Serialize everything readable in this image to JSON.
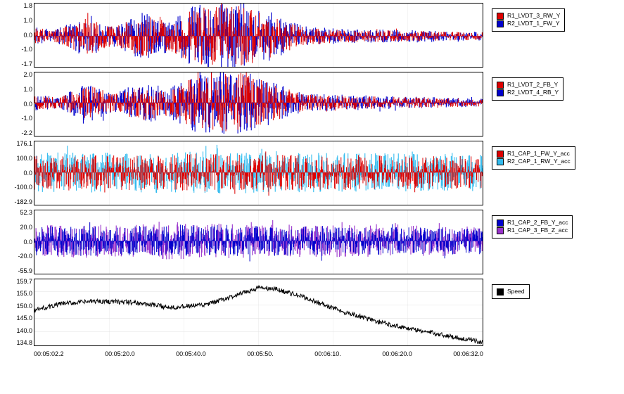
{
  "global": {
    "background_color": "#ffffff",
    "border_color": "#000000",
    "grid_color": "#e0e0e0",
    "tick_fontsize": 9,
    "legend_fontsize": 8.5
  },
  "xaxis": {
    "ticks": [
      "00:05:02.2",
      "00:05:20.0",
      "00:05:40.0",
      "00:05:50.",
      "00:06:10.",
      "00:06:20.0",
      "00:06:32.0"
    ]
  },
  "panels": [
    {
      "id": "p1",
      "height": 92,
      "yticks": [
        "1.8",
        "1.0",
        "0.0",
        "-1.0",
        "-1.7"
      ],
      "ylim": [
        -1.7,
        1.8
      ],
      "type": "dense-timeseries",
      "series": [
        {
          "name": "R1_LVDT_3_RW_Y",
          "color": "#dd0000"
        },
        {
          "name": "R2_LVDT_1_FW_Y",
          "color": "#0000cc"
        }
      ],
      "envelope": {
        "segments": [
          {
            "x": 0.0,
            "amp": 0.25
          },
          {
            "x": 0.05,
            "amp": 0.2
          },
          {
            "x": 0.12,
            "amp": 0.62
          },
          {
            "x": 0.18,
            "amp": 0.3
          },
          {
            "x": 0.24,
            "amp": 0.68
          },
          {
            "x": 0.3,
            "amp": 0.45
          },
          {
            "x": 0.36,
            "amp": 0.9
          },
          {
            "x": 0.46,
            "amp": 0.98
          },
          {
            "x": 0.54,
            "amp": 0.62
          },
          {
            "x": 0.6,
            "amp": 0.28
          },
          {
            "x": 0.7,
            "amp": 0.2
          },
          {
            "x": 0.8,
            "amp": 0.18
          },
          {
            "x": 0.9,
            "amp": 0.15
          },
          {
            "x": 1.0,
            "amp": 0.12
          }
        ]
      }
    },
    {
      "id": "p2",
      "height": 92,
      "yticks": [
        "2.0",
        "1.0",
        "0.0",
        "-1.0",
        "-2.2"
      ],
      "ylim": [
        -2.2,
        2.0
      ],
      "type": "dense-timeseries",
      "series": [
        {
          "name": "R1_LVDT_2_FB_Y",
          "color": "#dd0000"
        },
        {
          "name": "R2_LVDT_4_RB_Y",
          "color": "#0000cc"
        }
      ],
      "envelope": {
        "segments": [
          {
            "x": 0.0,
            "amp": 0.22
          },
          {
            "x": 0.05,
            "amp": 0.18
          },
          {
            "x": 0.12,
            "amp": 0.55
          },
          {
            "x": 0.18,
            "amp": 0.28
          },
          {
            "x": 0.24,
            "amp": 0.6
          },
          {
            "x": 0.3,
            "amp": 0.4
          },
          {
            "x": 0.36,
            "amp": 0.85
          },
          {
            "x": 0.46,
            "amp": 0.95
          },
          {
            "x": 0.54,
            "amp": 0.58
          },
          {
            "x": 0.6,
            "amp": 0.26
          },
          {
            "x": 0.7,
            "amp": 0.22
          },
          {
            "x": 0.8,
            "amp": 0.18
          },
          {
            "x": 0.9,
            "amp": 0.15
          },
          {
            "x": 1.0,
            "amp": 0.12
          }
        ]
      }
    },
    {
      "id": "p3",
      "height": 92,
      "yticks": [
        "176.1",
        "100.0",
        "0.0",
        "-100.0",
        "-182.9"
      ],
      "ylim": [
        -182.9,
        176.1
      ],
      "type": "dense-timeseries",
      "series": [
        {
          "name": "R1_CAP_1_FW_Y_acc",
          "color": "#dd0000"
        },
        {
          "name": "R2_CAP_1_RW_Y_acc",
          "color": "#33bbee"
        }
      ],
      "envelope": {
        "segments": [
          {
            "x": 0.0,
            "amp": 0.55
          },
          {
            "x": 0.1,
            "amp": 0.58
          },
          {
            "x": 0.2,
            "amp": 0.56
          },
          {
            "x": 0.3,
            "amp": 0.58
          },
          {
            "x": 0.4,
            "amp": 0.6
          },
          {
            "x": 0.5,
            "amp": 0.58
          },
          {
            "x": 0.6,
            "amp": 0.56
          },
          {
            "x": 0.7,
            "amp": 0.55
          },
          {
            "x": 0.8,
            "amp": 0.54
          },
          {
            "x": 0.9,
            "amp": 0.53
          },
          {
            "x": 1.0,
            "amp": 0.52
          }
        ]
      }
    },
    {
      "id": "p4",
      "height": 92,
      "yticks": [
        "52.3",
        "20.0",
        "0.0",
        "-20.0",
        "-55.9"
      ],
      "ylim": [
        -55.9,
        52.3
      ],
      "type": "dense-timeseries",
      "series": [
        {
          "name": "R1_CAP_2_FB_Y_acc",
          "color": "#0000cc"
        },
        {
          "name": "R1_CAP_3_FB_Z_acc",
          "color": "#9933cc"
        }
      ],
      "envelope": {
        "segments": [
          {
            "x": 0.0,
            "amp": 0.45
          },
          {
            "x": 0.1,
            "amp": 0.48
          },
          {
            "x": 0.2,
            "amp": 0.46
          },
          {
            "x": 0.3,
            "amp": 0.52
          },
          {
            "x": 0.4,
            "amp": 0.5
          },
          {
            "x": 0.5,
            "amp": 0.48
          },
          {
            "x": 0.6,
            "amp": 0.46
          },
          {
            "x": 0.7,
            "amp": 0.45
          },
          {
            "x": 0.8,
            "amp": 0.44
          },
          {
            "x": 0.9,
            "amp": 0.43
          },
          {
            "x": 1.0,
            "amp": 0.42
          }
        ]
      }
    },
    {
      "id": "p5",
      "height": 96,
      "yticks": [
        "159.7",
        "155.0",
        "150.0",
        "145.0",
        "140.0",
        "134.8"
      ],
      "ylim": [
        134.8,
        159.7
      ],
      "type": "line",
      "series": [
        {
          "name": "Speed",
          "color": "#000000"
        }
      ],
      "line": {
        "noise": 0.9,
        "points": [
          {
            "x": 0.0,
            "y": 148.0
          },
          {
            "x": 0.06,
            "y": 150.5
          },
          {
            "x": 0.14,
            "y": 151.5
          },
          {
            "x": 0.22,
            "y": 151.0
          },
          {
            "x": 0.3,
            "y": 149.2
          },
          {
            "x": 0.38,
            "y": 150.0
          },
          {
            "x": 0.44,
            "y": 153.0
          },
          {
            "x": 0.5,
            "y": 156.5
          },
          {
            "x": 0.54,
            "y": 156.0
          },
          {
            "x": 0.6,
            "y": 153.0
          },
          {
            "x": 0.68,
            "y": 148.0
          },
          {
            "x": 0.76,
            "y": 144.0
          },
          {
            "x": 0.84,
            "y": 141.0
          },
          {
            "x": 0.92,
            "y": 138.5
          },
          {
            "x": 1.0,
            "y": 136.0
          }
        ]
      }
    }
  ]
}
